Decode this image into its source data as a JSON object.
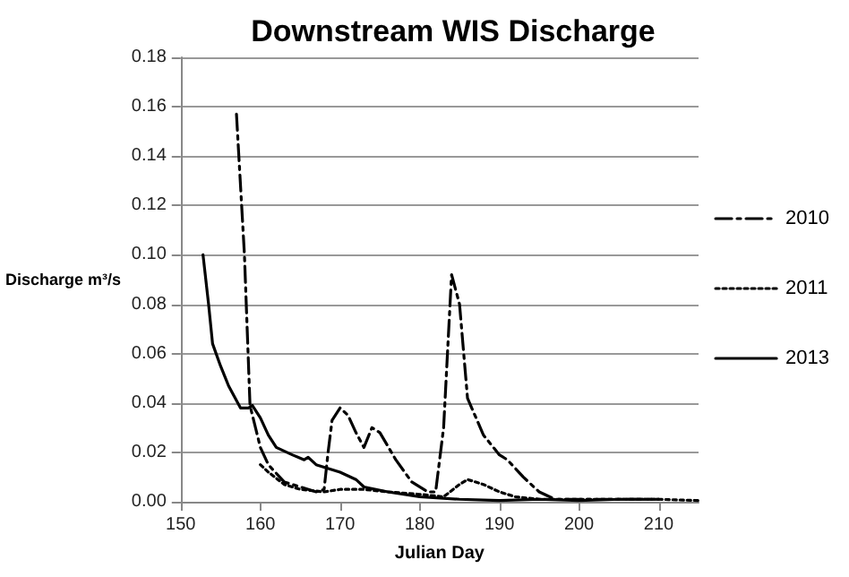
{
  "chart_data": {
    "type": "line",
    "title": "Downstream WIS Discharge",
    "xlabel": "Julian Day",
    "ylabel": "Discharge m³/s",
    "xlim": [
      150,
      215
    ],
    "xticks": [
      150,
      160,
      170,
      180,
      190,
      200,
      210
    ],
    "ylim": [
      0,
      0.18
    ],
    "yticks": [
      {
        "value": 0,
        "label": "0.00"
      },
      {
        "value": 0.02,
        "label": "0.02"
      },
      {
        "value": 0.04,
        "label": "0.04"
      },
      {
        "value": 0.06,
        "label": "0.06"
      },
      {
        "value": 0.08,
        "label": "0.08"
      },
      {
        "value": 0.1,
        "label": "0.10"
      },
      {
        "value": 0.12,
        "label": "0.12"
      },
      {
        "value": 0.14,
        "label": "0.14"
      },
      {
        "value": 0.16,
        "label": "0.16"
      },
      {
        "value": 0.18,
        "label": "0.18"
      }
    ],
    "grid": "y",
    "legend": "right",
    "marker": "none",
    "series": [
      {
        "name": "2010",
        "color": "#000000",
        "line_style": "dashed",
        "x": [
          157,
          158,
          158.7,
          160,
          161,
          163,
          165,
          167,
          168,
          168.5,
          169,
          170,
          171,
          172,
          173,
          174,
          175,
          177,
          179,
          181,
          182,
          183,
          184,
          185,
          186,
          188,
          190,
          191,
          193,
          195,
          197,
          200,
          205,
          210
        ],
        "values": [
          0.157,
          0.1,
          0.039,
          0.022,
          0.015,
          0.008,
          0.006,
          0.004,
          0.005,
          0.02,
          0.033,
          0.038,
          0.035,
          0.028,
          0.022,
          0.03,
          0.028,
          0.017,
          0.008,
          0.004,
          0.004,
          0.03,
          0.092,
          0.08,
          0.042,
          0.027,
          0.019,
          0.017,
          0.01,
          0.004,
          0.001,
          0.001,
          0.001,
          0.001
        ]
      },
      {
        "name": "2011",
        "color": "#000000",
        "line_style": "dotted",
        "x": [
          160,
          161,
          163,
          165,
          168,
          170,
          173,
          176,
          180,
          183,
          185,
          186,
          188,
          190,
          192,
          195,
          200,
          205,
          210,
          215
        ],
        "values": [
          0.015,
          0.012,
          0.007,
          0.005,
          0.004,
          0.005,
          0.005,
          0.004,
          0.003,
          0.002,
          0.007,
          0.009,
          0.007,
          0.004,
          0.002,
          0.001,
          0.001,
          0.001,
          0.001,
          0.0005
        ]
      },
      {
        "name": "2013",
        "color": "#000000",
        "line_style": "solid",
        "x": [
          152.8,
          153.5,
          154,
          155,
          156,
          157.5,
          158.5,
          159,
          160,
          161,
          162,
          164,
          165.5,
          166,
          167,
          170,
          172,
          173,
          176,
          180,
          185,
          190,
          195,
          200,
          205,
          210
        ],
        "values": [
          0.1,
          0.08,
          0.064,
          0.055,
          0.047,
          0.038,
          0.038,
          0.039,
          0.034,
          0.027,
          0.022,
          0.019,
          0.017,
          0.018,
          0.015,
          0.012,
          0.009,
          0.006,
          0.004,
          0.002,
          0.001,
          0.0005,
          0.001,
          0.0005,
          0.001,
          0.001
        ]
      }
    ]
  }
}
